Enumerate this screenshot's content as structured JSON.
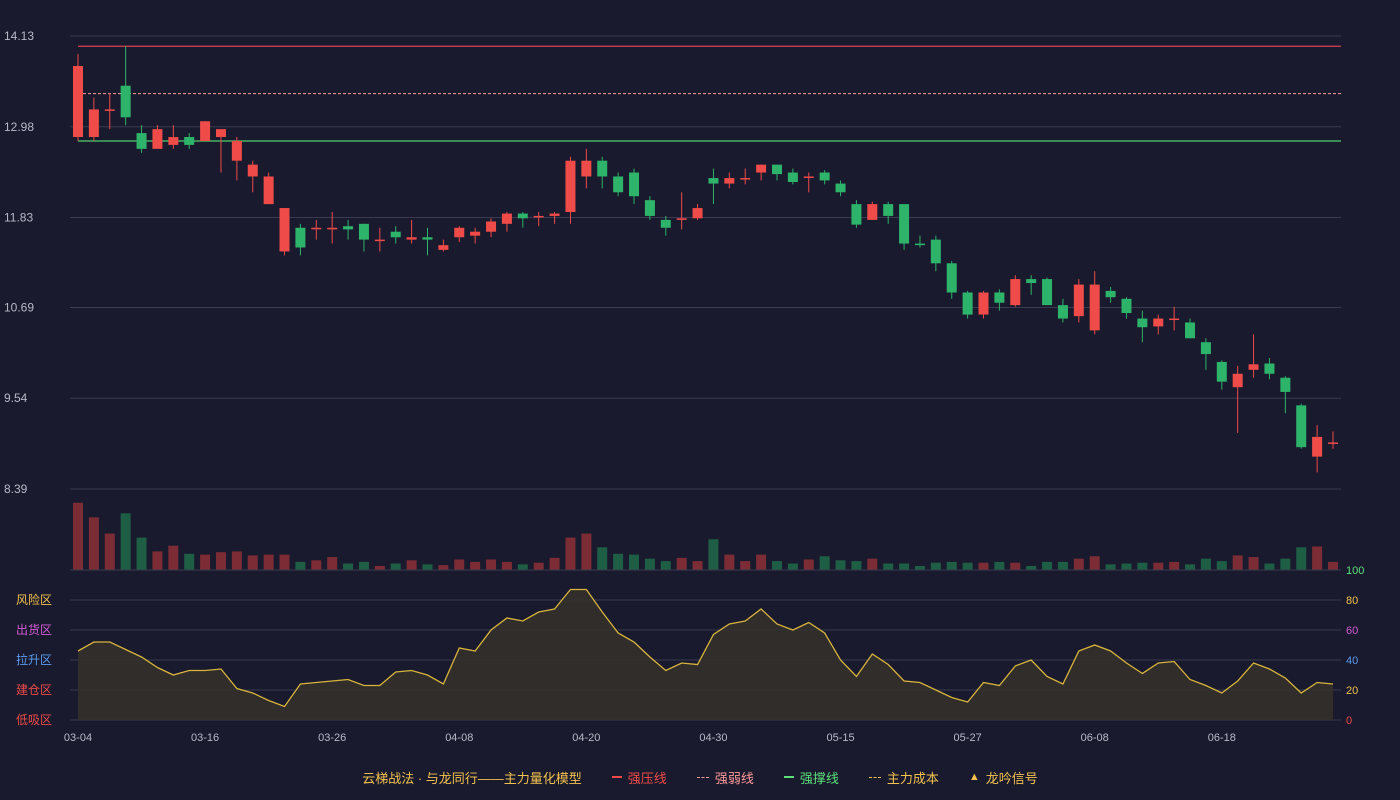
{
  "chart_data": {
    "type": "candlestick",
    "x_labels": [
      "03-04",
      "03-16",
      "03-26",
      "04-08",
      "04-20",
      "04-30",
      "05-15",
      "05-27",
      "06-08",
      "06-18"
    ],
    "price_axis": {
      "ticks": [
        "14.13",
        "12.98",
        "11.83",
        "10.69",
        "9.54",
        "8.39"
      ],
      "range": [
        8.39,
        14.13
      ]
    },
    "lines": {
      "resistance": 14.0,
      "weak": 13.4,
      "support": 12.8
    },
    "candles": [
      [
        12.85,
        13.75,
        13.9,
        12.8
      ],
      [
        12.85,
        13.2,
        13.35,
        12.8
      ],
      [
        13.2,
        13.2,
        13.4,
        12.95
      ],
      [
        13.5,
        13.1,
        14.0,
        13.0
      ],
      [
        12.9,
        12.7,
        13.0,
        12.65
      ],
      [
        12.7,
        12.95,
        13.0,
        12.75
      ],
      [
        12.75,
        12.85,
        13.0,
        12.7
      ],
      [
        12.85,
        12.75,
        12.9,
        12.7
      ],
      [
        12.8,
        13.05,
        13.05,
        12.8
      ],
      [
        12.85,
        12.95,
        12.95,
        12.4
      ],
      [
        12.55,
        12.8,
        12.85,
        12.3
      ],
      [
        12.35,
        12.5,
        12.55,
        12.15
      ],
      [
        12.0,
        12.35,
        12.4,
        12.0
      ],
      [
        11.4,
        11.95,
        11.95,
        11.35
      ],
      [
        11.7,
        11.45,
        11.75,
        11.35
      ],
      [
        11.7,
        11.7,
        11.8,
        11.55
      ],
      [
        11.68,
        11.7,
        11.9,
        11.5
      ],
      [
        11.72,
        11.68,
        11.8,
        11.55
      ],
      [
        11.75,
        11.55,
        11.75,
        11.4
      ],
      [
        11.55,
        11.55,
        11.7,
        11.4
      ],
      [
        11.65,
        11.58,
        11.72,
        11.5
      ],
      [
        11.55,
        11.58,
        11.8,
        11.5
      ],
      [
        11.58,
        11.55,
        11.7,
        11.35
      ],
      [
        11.42,
        11.48,
        11.55,
        11.4
      ],
      [
        11.58,
        11.7,
        11.72,
        11.52
      ],
      [
        11.6,
        11.65,
        11.7,
        11.5
      ],
      [
        11.65,
        11.78,
        11.82,
        11.58
      ],
      [
        11.75,
        11.88,
        11.9,
        11.65
      ],
      [
        11.88,
        11.82,
        11.9,
        11.7
      ],
      [
        11.85,
        11.85,
        11.9,
        11.72
      ],
      [
        11.85,
        11.88,
        11.9,
        11.75
      ],
      [
        11.9,
        12.55,
        12.6,
        11.75
      ],
      [
        12.35,
        12.55,
        12.7,
        12.2
      ],
      [
        12.55,
        12.35,
        12.6,
        12.2
      ],
      [
        12.35,
        12.15,
        12.4,
        12.1
      ],
      [
        12.4,
        12.1,
        12.45,
        12.0
      ],
      [
        12.05,
        11.85,
        12.1,
        11.8
      ],
      [
        11.8,
        11.7,
        11.85,
        11.6
      ],
      [
        11.8,
        11.82,
        12.15,
        11.68
      ],
      [
        11.82,
        11.95,
        12.0,
        11.8
      ],
      [
        12.33,
        12.26,
        12.45,
        12.0
      ],
      [
        12.26,
        12.33,
        12.4,
        12.2
      ],
      [
        12.33,
        12.33,
        12.45,
        12.25
      ],
      [
        12.4,
        12.5,
        12.5,
        12.3
      ],
      [
        12.5,
        12.38,
        12.5,
        12.3
      ],
      [
        12.4,
        12.28,
        12.45,
        12.25
      ],
      [
        12.35,
        12.35,
        12.4,
        12.15
      ],
      [
        12.4,
        12.3,
        12.43,
        12.25
      ],
      [
        12.26,
        12.15,
        12.3,
        12.1
      ],
      [
        12.0,
        11.74,
        12.05,
        11.7
      ],
      [
        11.8,
        12.0,
        12.03,
        11.8
      ],
      [
        12.0,
        11.85,
        12.03,
        11.75
      ],
      [
        12.0,
        11.5,
        12.0,
        11.42
      ],
      [
        11.5,
        11.48,
        11.6,
        11.45
      ],
      [
        11.55,
        11.25,
        11.6,
        11.15
      ],
      [
        11.25,
        10.88,
        11.28,
        10.8
      ],
      [
        10.88,
        10.6,
        10.9,
        10.55
      ],
      [
        10.6,
        10.88,
        10.9,
        10.55
      ],
      [
        10.88,
        10.75,
        10.92,
        10.65
      ],
      [
        10.72,
        11.05,
        11.1,
        10.7
      ],
      [
        11.05,
        11.0,
        11.1,
        10.85
      ],
      [
        11.05,
        10.72,
        11.07,
        10.72
      ],
      [
        10.72,
        10.55,
        10.8,
        10.5
      ],
      [
        10.58,
        10.98,
        11.05,
        10.5
      ],
      [
        10.4,
        10.98,
        11.15,
        10.35
      ],
      [
        10.9,
        10.82,
        10.95,
        10.75
      ],
      [
        10.8,
        10.62,
        10.82,
        10.55
      ],
      [
        10.55,
        10.44,
        10.65,
        10.25
      ],
      [
        10.45,
        10.55,
        10.6,
        10.35
      ],
      [
        10.55,
        10.55,
        10.7,
        10.4
      ],
      [
        10.5,
        10.3,
        10.55,
        10.3
      ],
      [
        10.25,
        10.1,
        10.3,
        9.9
      ],
      [
        10.0,
        9.75,
        10.02,
        9.65
      ],
      [
        9.68,
        9.85,
        9.95,
        9.1
      ],
      [
        9.9,
        9.97,
        10.35,
        9.8
      ],
      [
        9.98,
        9.85,
        10.05,
        9.78
      ],
      [
        9.8,
        9.62,
        9.82,
        9.35
      ],
      [
        9.45,
        8.92,
        9.47,
        8.9
      ],
      [
        8.8,
        9.05,
        9.2,
        8.6
      ],
      [
        8.98,
        8.98,
        9.12,
        8.9
      ]
    ],
    "volume": [
      0.83,
      0.65,
      0.45,
      0.7,
      0.4,
      0.23,
      0.3,
      0.2,
      0.19,
      0.22,
      0.23,
      0.18,
      0.19,
      0.19,
      0.1,
      0.12,
      0.16,
      0.08,
      0.1,
      0.05,
      0.08,
      0.12,
      0.07,
      0.06,
      0.13,
      0.1,
      0.13,
      0.1,
      0.07,
      0.09,
      0.15,
      0.4,
      0.45,
      0.28,
      0.2,
      0.19,
      0.14,
      0.11,
      0.15,
      0.11,
      0.38,
      0.19,
      0.11,
      0.19,
      0.11,
      0.08,
      0.13,
      0.17,
      0.12,
      0.11,
      0.14,
      0.08,
      0.08,
      0.05,
      0.09,
      0.1,
      0.09,
      0.09,
      0.1,
      0.09,
      0.05,
      0.1,
      0.1,
      0.14,
      0.17,
      0.07,
      0.08,
      0.09,
      0.09,
      0.1,
      0.07,
      0.14,
      0.11,
      0.18,
      0.16,
      0.08,
      0.14,
      0.28,
      0.29,
      0.1
    ],
    "oscillator": {
      "ticks": [
        "100",
        "80",
        "60",
        "40",
        "20",
        "0"
      ],
      "zones": [
        "风险区",
        "出货区",
        "拉升区",
        "建仓区",
        "低吸区"
      ],
      "values": [
        46,
        52,
        52,
        47,
        42,
        35,
        30,
        33,
        33,
        34,
        21,
        18,
        13,
        9,
        24,
        25,
        26,
        27,
        23,
        23,
        32,
        33,
        30,
        24,
        48,
        46,
        60,
        68,
        66,
        72,
        74,
        87,
        87,
        72,
        58,
        52,
        42,
        33,
        38,
        37,
        57,
        64,
        66,
        74,
        64,
        60,
        65,
        58,
        40,
        29,
        44,
        37,
        26,
        25,
        20,
        15,
        12,
        25,
        23,
        36,
        40,
        29,
        24,
        46,
        50,
        46,
        38,
        31,
        38,
        39,
        27,
        23,
        18,
        26,
        38,
        34,
        28,
        18,
        25,
        24
      ]
    },
    "legend": {
      "title": "云梯战法 · 与龙同行——主力量化模型",
      "items": [
        {
          "label": "强压线",
          "color": "#ef4b48",
          "style": "solid"
        },
        {
          "label": "强弱线",
          "color": "#ff9b9b",
          "style": "dashed"
        },
        {
          "label": "强撑线",
          "color": "#5ce07a",
          "style": "solid"
        },
        {
          "label": "主力成本",
          "color": "#f2c14e",
          "style": "dashed"
        },
        {
          "label": "龙吟信号",
          "color": "#f2c14e",
          "style": "triangle",
          "icon": "triangle-up-icon"
        }
      ]
    },
    "colors": {
      "up": "#ef4b48",
      "down": "#2db36a",
      "vol_up": "#7c2c35",
      "vol_down": "#1e5e45",
      "osc_line": "#d8b43c",
      "grid": "#3a3b50"
    }
  }
}
